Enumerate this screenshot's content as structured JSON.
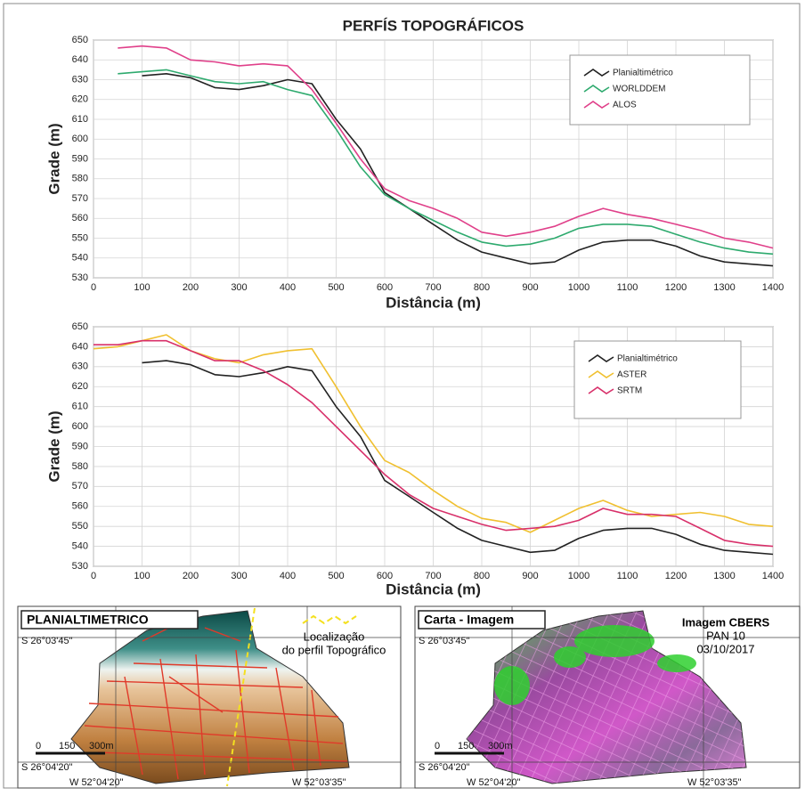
{
  "chart_data": [
    {
      "type": "line",
      "title": "PERFÍS TOPOGRÁFICOS",
      "x_label": "Distância (m)",
      "y_label": "Grade (m)",
      "x": [
        0,
        50,
        100,
        150,
        200,
        250,
        300,
        350,
        400,
        450,
        500,
        550,
        600,
        650,
        700,
        750,
        800,
        850,
        900,
        950,
        1000,
        1050,
        1100,
        1150,
        1200,
        1250,
        1300,
        1350,
        1400
      ],
      "series": [
        {
          "name": "Planialtimétrico",
          "color": "#222222",
          "values": [
            null,
            null,
            632,
            633,
            631,
            626,
            625,
            627,
            630,
            628,
            610,
            595,
            573,
            565,
            557,
            549,
            543,
            540,
            537,
            538,
            544,
            548,
            549,
            549,
            546,
            541,
            538,
            537,
            536
          ]
        },
        {
          "name": "WORLDDEM",
          "color": "#2eaa6e",
          "values": [
            null,
            633,
            634,
            635,
            632,
            629,
            628,
            629,
            625,
            622,
            605,
            586,
            572,
            565,
            559,
            553,
            548,
            546,
            547,
            550,
            555,
            557,
            557,
            556,
            552,
            548,
            545,
            543,
            542
          ]
        },
        {
          "name": "ALOS",
          "color": "#e0408a",
          "values": [
            null,
            646,
            647,
            646,
            640,
            639,
            637,
            638,
            637,
            625,
            608,
            590,
            575,
            569,
            565,
            560,
            553,
            551,
            553,
            556,
            561,
            565,
            562,
            560,
            557,
            554,
            550,
            548,
            545
          ]
        }
      ],
      "xlim": [
        0,
        1400
      ],
      "xticks": [
        0,
        100,
        200,
        300,
        400,
        500,
        600,
        700,
        800,
        900,
        1000,
        1100,
        1200,
        1300,
        1400
      ],
      "ylim": [
        530,
        650
      ],
      "yticks": [
        530,
        540,
        550,
        560,
        570,
        580,
        590,
        600,
        610,
        620,
        630,
        640,
        650
      ],
      "grid": true,
      "legend": "upper-right"
    },
    {
      "type": "line",
      "x_label": "Distância (m)",
      "y_label": "Grade (m)",
      "x": [
        0,
        50,
        100,
        150,
        200,
        250,
        300,
        350,
        400,
        450,
        500,
        550,
        600,
        650,
        700,
        750,
        800,
        850,
        900,
        950,
        1000,
        1050,
        1100,
        1150,
        1200,
        1250,
        1300,
        1350,
        1400
      ],
      "series": [
        {
          "name": "Planialtimétrico",
          "color": "#222222",
          "values": [
            null,
            null,
            632,
            633,
            631,
            626,
            625,
            627,
            630,
            628,
            610,
            595,
            573,
            565,
            557,
            549,
            543,
            540,
            537,
            538,
            544,
            548,
            549,
            549,
            546,
            541,
            538,
            537,
            536
          ]
        },
        {
          "name": "ASTER",
          "color": "#f0c030",
          "values": [
            639,
            640,
            643,
            646,
            638,
            634,
            632,
            636,
            638,
            639,
            620,
            600,
            583,
            577,
            568,
            560,
            554,
            552,
            547,
            553,
            559,
            563,
            558,
            555,
            556,
            557,
            555,
            551,
            550
          ]
        },
        {
          "name": "SRTM",
          "color": "#d8306a",
          "values": [
            641,
            641,
            643,
            643,
            638,
            633,
            633,
            628,
            621,
            612,
            600,
            588,
            576,
            566,
            559,
            555,
            551,
            548,
            549,
            550,
            553,
            559,
            556,
            556,
            555,
            549,
            543,
            541,
            540
          ]
        }
      ],
      "xlim": [
        0,
        1400
      ],
      "xticks": [
        0,
        100,
        200,
        300,
        400,
        500,
        600,
        700,
        800,
        900,
        1000,
        1100,
        1200,
        1300,
        1400
      ],
      "ylim": [
        530,
        650
      ],
      "yticks": [
        530,
        540,
        550,
        560,
        570,
        580,
        590,
        600,
        610,
        620,
        630,
        640,
        650
      ],
      "grid": true,
      "legend": "upper-right"
    }
  ],
  "maps": [
    {
      "title": "PLANIALTIMETRICO",
      "lat_top": "S 26°03'45\"",
      "lat_bottom": "S 26°04'20\"",
      "lon_left": "W 52°04'20\"",
      "lon_right": "W 52°03'35\"",
      "scale": [
        "0",
        "150",
        "300m"
      ],
      "legend": [
        "Localização",
        "do perfil Topográfico"
      ]
    },
    {
      "title": "Carta - Imagem",
      "lat_top": "S 26°03'45\"",
      "lat_bottom": "S 26°04'20\"",
      "lon_left": "W 52°04'20\"",
      "lon_right": "W 52°03'35\"",
      "scale": [
        "0",
        "150",
        "300m"
      ],
      "caption": [
        "Imagem CBERS",
        "PAN 10",
        "03/10/2017"
      ]
    }
  ]
}
